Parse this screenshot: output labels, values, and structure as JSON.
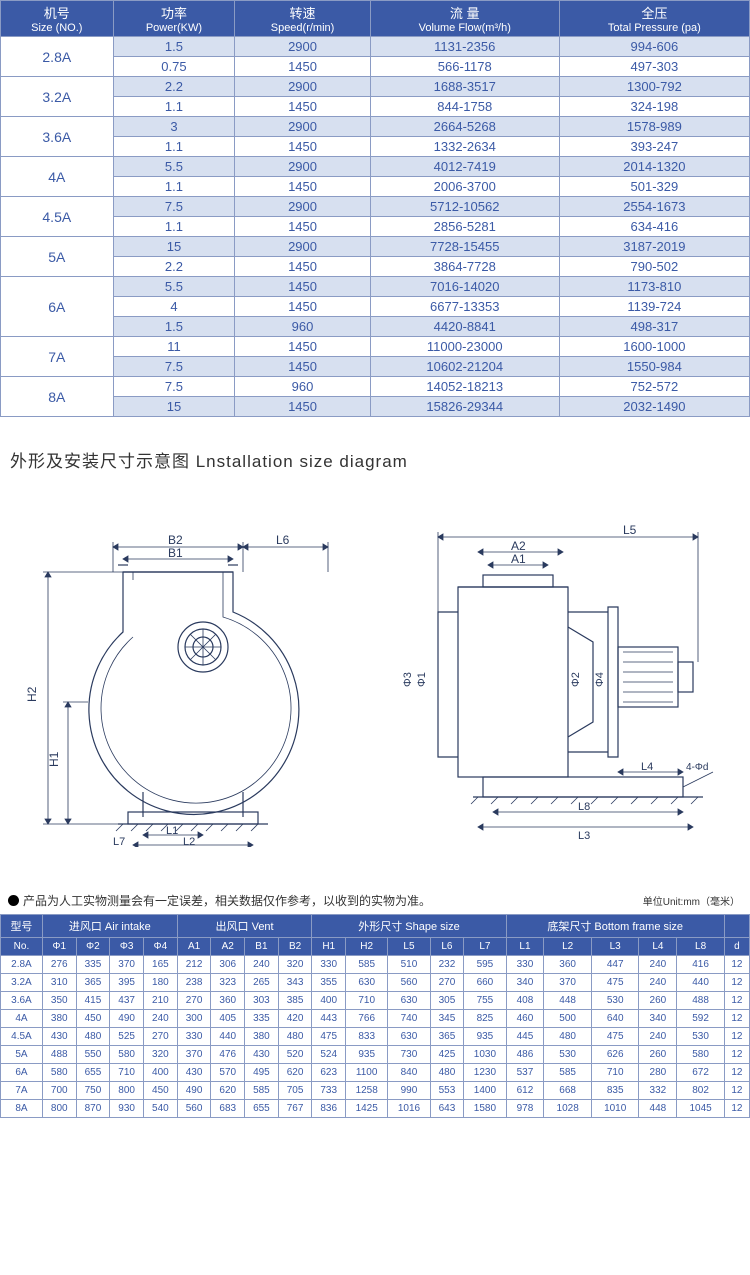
{
  "spec_table": {
    "headers": [
      {
        "cn": "机号",
        "en": "Size (NO.)"
      },
      {
        "cn": "功率",
        "en": "Power(KW)"
      },
      {
        "cn": "转速",
        "en": "Speed(r/min)"
      },
      {
        "cn": "流 量",
        "en": "Volume Flow(m³/h)"
      },
      {
        "cn": "全压",
        "en": "Total Pressure (pa)"
      }
    ],
    "groups": [
      {
        "model": "2.8A",
        "rows": [
          [
            "1.5",
            "2900",
            "1131-2356",
            "994-606"
          ],
          [
            "0.75",
            "1450",
            "566-1178",
            "497-303"
          ]
        ]
      },
      {
        "model": "3.2A",
        "rows": [
          [
            "2.2",
            "2900",
            "1688-3517",
            "1300-792"
          ],
          [
            "1.1",
            "1450",
            "844-1758",
            "324-198"
          ]
        ]
      },
      {
        "model": "3.6A",
        "rows": [
          [
            "3",
            "2900",
            "2664-5268",
            "1578-989"
          ],
          [
            "1.1",
            "1450",
            "1332-2634",
            "393-247"
          ]
        ]
      },
      {
        "model": "4A",
        "rows": [
          [
            "5.5",
            "2900",
            "4012-7419",
            "2014-1320"
          ],
          [
            "1.1",
            "1450",
            "2006-3700",
            "501-329"
          ]
        ]
      },
      {
        "model": "4.5A",
        "rows": [
          [
            "7.5",
            "2900",
            "5712-10562",
            "2554-1673"
          ],
          [
            "1.1",
            "1450",
            "2856-5281",
            "634-416"
          ]
        ]
      },
      {
        "model": "5A",
        "rows": [
          [
            "15",
            "2900",
            "7728-15455",
            "3187-2019"
          ],
          [
            "2.2",
            "1450",
            "3864-7728",
            "790-502"
          ]
        ]
      },
      {
        "model": "6A",
        "rows": [
          [
            "5.5",
            "1450",
            "7016-14020",
            "1173-810"
          ],
          [
            "4",
            "1450",
            "6677-13353",
            "1139-724"
          ],
          [
            "1.5",
            "960",
            "4420-8841",
            "498-317"
          ]
        ]
      },
      {
        "model": "7A",
        "rows": [
          [
            "11",
            "1450",
            "11000-23000",
            "1600-1000"
          ],
          [
            "7.5",
            "1450",
            "10602-21204",
            "1550-984"
          ]
        ]
      },
      {
        "model": "8A",
        "rows": [
          [
            "7.5",
            "960",
            "14052-18213",
            "752-572"
          ],
          [
            "15",
            "1450",
            "15826-29344",
            "2032-1490"
          ]
        ]
      }
    ]
  },
  "section_title": "外形及安装尺寸示意图  Lnstallation size diagram",
  "diagram_left": {
    "labels": {
      "B2": "B2",
      "B1": "B1",
      "L6": "L6",
      "H2": "H2",
      "H1": "H1",
      "L1": "L1",
      "L2": "L2",
      "L7": "L7"
    }
  },
  "diagram_right": {
    "labels": {
      "L5": "L5",
      "A2": "A2",
      "A1": "A1",
      "phi3": "Φ3",
      "phi1": "Φ1",
      "phi2": "Φ2",
      "phi4": "Φ4",
      "L4": "L4",
      "L8": "L8",
      "L3": "L3",
      "hole": "4-Φd"
    }
  },
  "note": "产品为人工实物测量会有一定误差，相关数据仅作参考，以收到的实物为准。",
  "note_unit": "单位Unit:mm（毫米）",
  "dim_table": {
    "top_groups": [
      {
        "label": "型号",
        "span": 1
      },
      {
        "label": "进风口 Air intake",
        "span": 4
      },
      {
        "label": "出风口 Vent",
        "span": 4
      },
      {
        "label": "外形尺寸 Shape size",
        "span": 5
      },
      {
        "label": "底架尺寸 Bottom frame size",
        "span": 5
      },
      {
        "label": "",
        "span": 1
      }
    ],
    "sub_headers": [
      "No.",
      "Φ1",
      "Φ2",
      "Φ3",
      "Φ4",
      "A1",
      "A2",
      "B1",
      "B2",
      "H1",
      "H2",
      "L5",
      "L6",
      "L7",
      "L1",
      "L2",
      "L3",
      "L4",
      "L8",
      "d"
    ],
    "rows": [
      [
        "2.8A",
        "276",
        "335",
        "370",
        "165",
        "212",
        "306",
        "240",
        "320",
        "330",
        "585",
        "510",
        "232",
        "595",
        "330",
        "360",
        "447",
        "240",
        "416",
        "12"
      ],
      [
        "3.2A",
        "310",
        "365",
        "395",
        "180",
        "238",
        "323",
        "265",
        "343",
        "355",
        "630",
        "560",
        "270",
        "660",
        "340",
        "370",
        "475",
        "240",
        "440",
        "12"
      ],
      [
        "3.6A",
        "350",
        "415",
        "437",
        "210",
        "270",
        "360",
        "303",
        "385",
        "400",
        "710",
        "630",
        "305",
        "755",
        "408",
        "448",
        "530",
        "260",
        "488",
        "12"
      ],
      [
        "4A",
        "380",
        "450",
        "490",
        "240",
        "300",
        "405",
        "335",
        "420",
        "443",
        "766",
        "740",
        "345",
        "825",
        "460",
        "500",
        "640",
        "340",
        "592",
        "12"
      ],
      [
        "4.5A",
        "430",
        "480",
        "525",
        "270",
        "330",
        "440",
        "380",
        "480",
        "475",
        "833",
        "630",
        "365",
        "935",
        "445",
        "480",
        "475",
        "240",
        "530",
        "12"
      ],
      [
        "5A",
        "488",
        "550",
        "580",
        "320",
        "370",
        "476",
        "430",
        "520",
        "524",
        "935",
        "730",
        "425",
        "1030",
        "486",
        "530",
        "626",
        "260",
        "580",
        "12"
      ],
      [
        "6A",
        "580",
        "655",
        "710",
        "400",
        "430",
        "570",
        "495",
        "620",
        "623",
        "1100",
        "840",
        "480",
        "1230",
        "537",
        "585",
        "710",
        "280",
        "672",
        "12"
      ],
      [
        "7A",
        "700",
        "750",
        "800",
        "450",
        "490",
        "620",
        "585",
        "705",
        "733",
        "1258",
        "990",
        "553",
        "1400",
        "612",
        "668",
        "835",
        "332",
        "802",
        "12"
      ],
      [
        "8A",
        "800",
        "870",
        "930",
        "540",
        "560",
        "683",
        "655",
        "767",
        "836",
        "1425",
        "1016",
        "643",
        "1580",
        "978",
        "1028",
        "1010",
        "448",
        "1045",
        "12"
      ]
    ]
  }
}
